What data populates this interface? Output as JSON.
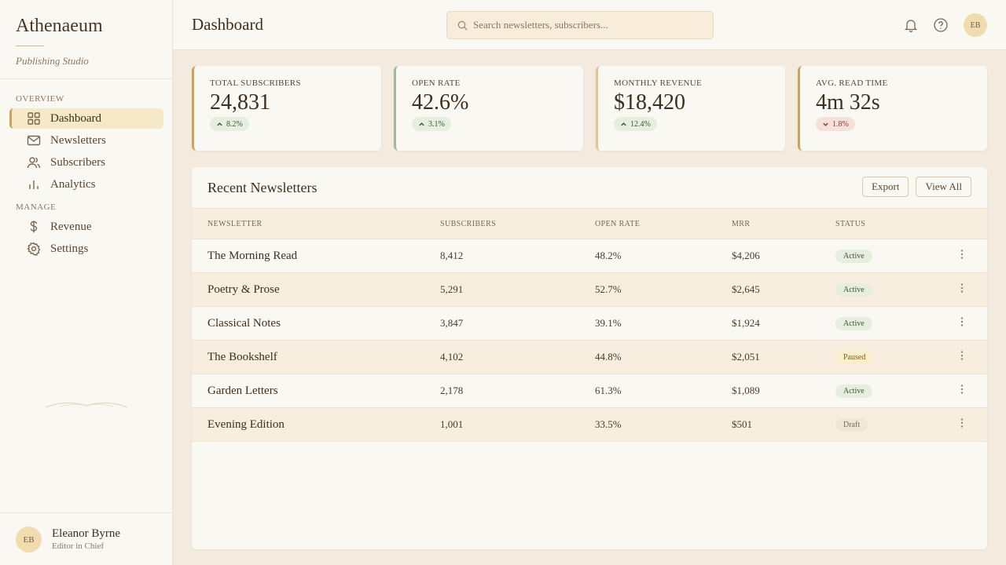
{
  "sidebar": {
    "brand": "Athenaeum",
    "tagline": "Publishing Studio",
    "sections": [
      {
        "label": "OVERVIEW",
        "items": [
          {
            "label": "Dashboard",
            "active": true
          },
          {
            "label": "Newsletters"
          },
          {
            "label": "Subscribers"
          },
          {
            "label": "Analytics"
          }
        ]
      },
      {
        "label": "MANAGE",
        "items": [
          {
            "label": "Revenue"
          },
          {
            "label": "Settings"
          }
        ]
      }
    ],
    "user": {
      "initials": "EB",
      "name": "Eleanor Byrne",
      "role": "Editor in Chief"
    }
  },
  "header": {
    "title": "Dashboard",
    "search_placeholder": "Search newsletters, subscribers...",
    "avatar": "EB"
  },
  "stats": [
    {
      "label": "TOTAL SUBSCRIBERS",
      "value": "24,831",
      "change": "8.2%",
      "direction": "up"
    },
    {
      "label": "OPEN RATE",
      "value": "42.6%",
      "change": "3.1%",
      "direction": "up"
    },
    {
      "label": "MONTHLY REVENUE",
      "value": "$18,420",
      "change": "12.4%",
      "direction": "up"
    },
    {
      "label": "AVG. READ TIME",
      "value": "4m 32s",
      "change": "1.8%",
      "direction": "down"
    }
  ],
  "table": {
    "title": "Recent Newsletters",
    "actions": [
      "Export",
      "View All"
    ],
    "columns": [
      "NEWSLETTER",
      "SUBSCRIBERS",
      "OPEN RATE",
      "MRR",
      "STATUS"
    ],
    "rows": [
      {
        "cells": [
          "The Morning Read",
          "8,412",
          "48.2%",
          "$4,206",
          "Active"
        ],
        "tone": "active"
      },
      {
        "cells": [
          "Poetry & Prose",
          "5,291",
          "52.7%",
          "$2,645",
          "Active"
        ],
        "tone": "active"
      },
      {
        "cells": [
          "Classical Notes",
          "3,847",
          "39.1%",
          "$1,924",
          "Active"
        ],
        "tone": "active"
      },
      {
        "cells": [
          "The Bookshelf",
          "4,102",
          "44.8%",
          "$2,051",
          "Paused"
        ],
        "tone": "paused"
      },
      {
        "cells": [
          "Garden Letters",
          "2,178",
          "61.3%",
          "$1,089",
          "Active"
        ],
        "tone": "active"
      },
      {
        "cells": [
          "Evening Edition",
          "1,001",
          "33.5%",
          "$501",
          "Draft"
        ],
        "tone": "draft"
      }
    ]
  }
}
